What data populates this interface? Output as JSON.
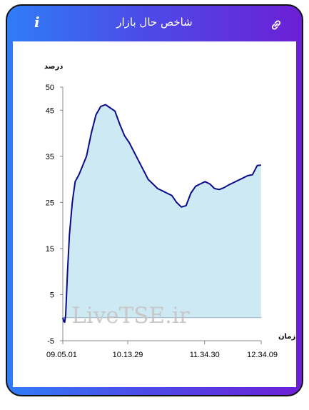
{
  "header": {
    "title": "شاخص حال بازار",
    "info_icon": "info-icon",
    "link_icon": "link-icon"
  },
  "colors": {
    "gradient_start": "#2f7df6",
    "gradient_end": "#6d1fd6",
    "line": "#0b0b8a",
    "fill": "#cde9f3"
  },
  "chart_data": {
    "type": "area",
    "ylabel": "درصد",
    "xlabel": "زمان",
    "ylim": [
      -5,
      50
    ],
    "yticks": [
      50,
      45,
      35,
      25,
      15,
      5,
      -5
    ],
    "xticks": [
      "09.05.01",
      "10.13.29",
      "11.34.30",
      "12.34.09"
    ],
    "xrange": [
      "09.05.01",
      "12.34.09"
    ],
    "watermark": "LiveTSE.ir",
    "x": [
      "09.05",
      "09.06",
      "09.07",
      "09.08",
      "09.10",
      "09.12",
      "09.15",
      "09.18",
      "09.22",
      "09.26",
      "09.30",
      "09.35",
      "09.40",
      "09.45",
      "09.50",
      "09.55",
      "10.00",
      "10.05",
      "10.10",
      "10.15",
      "10.20",
      "10.25",
      "10.30",
      "10.35",
      "10.40",
      "10.45",
      "10.50",
      "10.55",
      "11.00",
      "11.05",
      "11.10",
      "11.15",
      "11.20",
      "11.25",
      "11.30",
      "11.35",
      "11.40",
      "11.45",
      "11.50",
      "11.55",
      "12.00",
      "12.05",
      "12.10",
      "12.15",
      "12.20",
      "12.25",
      "12.30",
      "12.34"
    ],
    "values": [
      0.0,
      -0.8,
      -1.0,
      0.5,
      10,
      18,
      25,
      29.5,
      31,
      33,
      35,
      40,
      44,
      45.8,
      46.2,
      45.5,
      44.8,
      42,
      39.5,
      38,
      36,
      34,
      32,
      30,
      29,
      28,
      27.5,
      27,
      26.5,
      25,
      24,
      24.3,
      27,
      28.5,
      29,
      29.5,
      29,
      28,
      27.8,
      28.2,
      28.8,
      29.3,
      29.8,
      30.3,
      30.8,
      31,
      33,
      33.1
    ]
  }
}
